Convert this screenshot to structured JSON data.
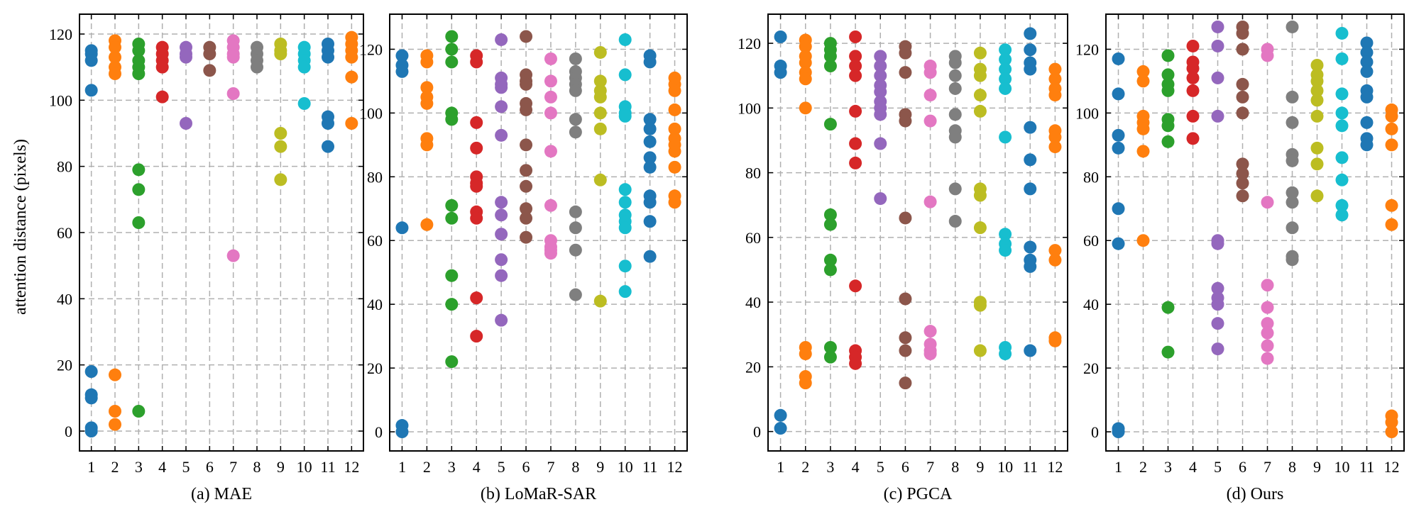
{
  "figure": {
    "ylabel": "attention distance (pixels)"
  },
  "colors": [
    "#1f77b4",
    "#ff7f0e",
    "#2ca02c",
    "#d62728",
    "#9467bd",
    "#8c564b",
    "#e377c2",
    "#7f7f7f",
    "#bcbd22",
    "#17becf",
    "#1f77b4",
    "#ff7f0e"
  ],
  "chart_data": [
    {
      "type": "scatter",
      "title": "(a) MAE",
      "xlabel": "(a) MAE",
      "ylabel": "attention distance (pixels)",
      "x_ticks": [
        1,
        2,
        3,
        4,
        5,
        6,
        7,
        8,
        9,
        10,
        11,
        12
      ],
      "y_ticks": [
        0,
        20,
        40,
        60,
        80,
        100,
        120
      ],
      "ylim": [
        -6,
        126
      ],
      "grid": true,
      "series": [
        {
          "layer": 1,
          "values": [
            115,
            114,
            112,
            103,
            18,
            11,
            10,
            1,
            0
          ]
        },
        {
          "layer": 2,
          "values": [
            118,
            116,
            113,
            110,
            108,
            17,
            6,
            2
          ]
        },
        {
          "layer": 3,
          "values": [
            117,
            115,
            112,
            110,
            108,
            79,
            73,
            63,
            6
          ]
        },
        {
          "layer": 4,
          "values": [
            116,
            114,
            112,
            110,
            101
          ]
        },
        {
          "layer": 5,
          "values": [
            116,
            114,
            113,
            93
          ]
        },
        {
          "layer": 6,
          "values": [
            116,
            114,
            109
          ]
        },
        {
          "layer": 7,
          "values": [
            118,
            116,
            114,
            113,
            102,
            53
          ]
        },
        {
          "layer": 8,
          "values": [
            116,
            114,
            112,
            110
          ]
        },
        {
          "layer": 9,
          "values": [
            117,
            115,
            114,
            90,
            86,
            76
          ]
        },
        {
          "layer": 10,
          "values": [
            116,
            114,
            112,
            110,
            99
          ]
        },
        {
          "layer": 11,
          "values": [
            117,
            115,
            113,
            95,
            93,
            86
          ]
        },
        {
          "layer": 12,
          "values": [
            119,
            117,
            115,
            113,
            107,
            93
          ]
        }
      ]
    },
    {
      "type": "scatter",
      "title": "(b) LoMaR-SAR",
      "xlabel": "(b) LoMaR-SAR",
      "ylabel": "",
      "x_ticks": [
        1,
        2,
        3,
        4,
        5,
        6,
        7,
        8,
        9,
        10,
        11,
        12
      ],
      "y_ticks": [
        0,
        20,
        40,
        60,
        80,
        100,
        120
      ],
      "ylim": [
        -6,
        131
      ],
      "grid": true,
      "series": [
        {
          "layer": 1,
          "values": [
            118,
            115,
            113,
            64,
            2,
            0
          ]
        },
        {
          "layer": 2,
          "values": [
            118,
            116,
            108,
            105,
            103,
            92,
            90,
            65
          ]
        },
        {
          "layer": 3,
          "values": [
            124,
            120,
            116,
            100,
            98,
            71,
            67,
            49,
            40,
            22
          ]
        },
        {
          "layer": 4,
          "values": [
            118,
            116,
            97,
            89,
            80,
            78,
            77,
            69,
            67,
            42,
            30
          ]
        },
        {
          "layer": 5,
          "values": [
            123,
            111,
            109,
            108,
            102,
            93,
            72,
            68,
            62,
            54,
            49,
            35
          ]
        },
        {
          "layer": 6,
          "values": [
            124,
            112,
            110,
            109,
            103,
            101,
            90,
            82,
            77,
            70,
            67,
            61
          ]
        },
        {
          "layer": 7,
          "values": [
            117,
            110,
            105,
            100,
            88,
            71,
            60,
            58,
            57,
            56
          ]
        },
        {
          "layer": 8,
          "values": [
            117,
            113,
            111,
            109,
            107,
            98,
            94,
            69,
            64,
            57,
            43
          ]
        },
        {
          "layer": 9,
          "values": [
            119,
            110,
            107,
            105,
            100,
            95,
            79,
            41
          ]
        },
        {
          "layer": 10,
          "values": [
            123,
            112,
            102,
            100,
            99,
            76,
            72,
            68,
            66,
            64,
            52,
            44
          ]
        },
        {
          "layer": 11,
          "values": [
            118,
            116,
            98,
            95,
            91,
            86,
            83,
            74,
            72,
            66,
            55
          ]
        },
        {
          "layer": 12,
          "values": [
            111,
            109,
            107,
            101,
            95,
            92,
            90,
            88,
            83,
            74,
            72
          ]
        }
      ]
    },
    {
      "type": "scatter",
      "title": "(c) PGCA",
      "xlabel": "(c) PGCA",
      "ylabel": "",
      "x_ticks": [
        1,
        2,
        3,
        4,
        5,
        6,
        7,
        8,
        9,
        10,
        11,
        12
      ],
      "y_ticks": [
        0,
        20,
        40,
        60,
        80,
        100,
        120
      ],
      "ylim": [
        -6,
        129
      ],
      "grid": true,
      "series": [
        {
          "layer": 1,
          "values": [
            122,
            113,
            111,
            5,
            1
          ]
        },
        {
          "layer": 2,
          "values": [
            121,
            119,
            116,
            114,
            111,
            109,
            100,
            26,
            24,
            17,
            15
          ]
        },
        {
          "layer": 3,
          "values": [
            120,
            118,
            116,
            113,
            95,
            67,
            64,
            53,
            50,
            26,
            23
          ]
        },
        {
          "layer": 4,
          "values": [
            122,
            116,
            113,
            110,
            99,
            89,
            83,
            45,
            25,
            23,
            21
          ]
        },
        {
          "layer": 5,
          "values": [
            116,
            113,
            110,
            107,
            105,
            102,
            100,
            98,
            89,
            72
          ]
        },
        {
          "layer": 6,
          "values": [
            119,
            117,
            111,
            98,
            96,
            66,
            41,
            29,
            25,
            15
          ]
        },
        {
          "layer": 7,
          "values": [
            113,
            111,
            104,
            96,
            71,
            31,
            27,
            25,
            24
          ]
        },
        {
          "layer": 8,
          "values": [
            116,
            114,
            110,
            106,
            98,
            93,
            91,
            75,
            65
          ]
        },
        {
          "layer": 9,
          "values": [
            117,
            112,
            110,
            104,
            99,
            75,
            73,
            63,
            40,
            39,
            25
          ]
        },
        {
          "layer": 10,
          "values": [
            118,
            115,
            112,
            109,
            106,
            91,
            61,
            58,
            56,
            26,
            24
          ]
        },
        {
          "layer": 11,
          "values": [
            123,
            118,
            114,
            112,
            94,
            84,
            75,
            57,
            53,
            51,
            25
          ]
        },
        {
          "layer": 12,
          "values": [
            112,
            109,
            106,
            104,
            93,
            91,
            88,
            56,
            53,
            29,
            28
          ]
        }
      ]
    },
    {
      "type": "scatter",
      "title": "(d) Ours",
      "xlabel": "(d) Ours",
      "ylabel": "",
      "x_ticks": [
        1,
        2,
        3,
        4,
        5,
        6,
        7,
        8,
        9,
        10,
        11,
        12
      ],
      "y_ticks": [
        0,
        20,
        40,
        60,
        80,
        100,
        120
      ],
      "ylim": [
        -6,
        131
      ],
      "grid": true,
      "series": [
        {
          "layer": 1,
          "values": [
            117,
            106,
            93,
            89,
            70,
            59,
            1,
            0
          ]
        },
        {
          "layer": 2,
          "values": [
            113,
            110,
            99,
            97,
            95,
            88,
            60
          ]
        },
        {
          "layer": 3,
          "values": [
            118,
            112,
            109,
            107,
            98,
            96,
            91,
            39,
            25
          ]
        },
        {
          "layer": 4,
          "values": [
            121,
            116,
            114,
            111,
            107,
            99,
            92
          ]
        },
        {
          "layer": 5,
          "values": [
            127,
            121,
            111,
            99,
            60,
            59,
            45,
            42,
            40,
            34,
            26
          ]
        },
        {
          "layer": 6,
          "values": [
            127,
            125,
            120,
            109,
            105,
            100,
            84,
            81,
            78,
            74
          ]
        },
        {
          "layer": 7,
          "values": [
            120,
            118,
            72,
            46,
            39,
            34,
            31,
            27,
            23
          ]
        },
        {
          "layer": 8,
          "values": [
            127,
            105,
            97,
            87,
            85,
            75,
            72,
            64,
            55,
            54
          ]
        },
        {
          "layer": 9,
          "values": [
            115,
            112,
            110,
            107,
            104,
            99,
            89,
            84,
            74
          ]
        },
        {
          "layer": 10,
          "values": [
            125,
            117,
            106,
            100,
            96,
            86,
            79,
            71,
            68
          ]
        },
        {
          "layer": 11,
          "values": [
            122,
            119,
            116,
            113,
            107,
            105,
            97,
            92,
            90
          ]
        },
        {
          "layer": 12,
          "values": [
            101,
            99,
            95,
            90,
            71,
            65,
            5,
            3,
            0
          ]
        }
      ]
    }
  ]
}
